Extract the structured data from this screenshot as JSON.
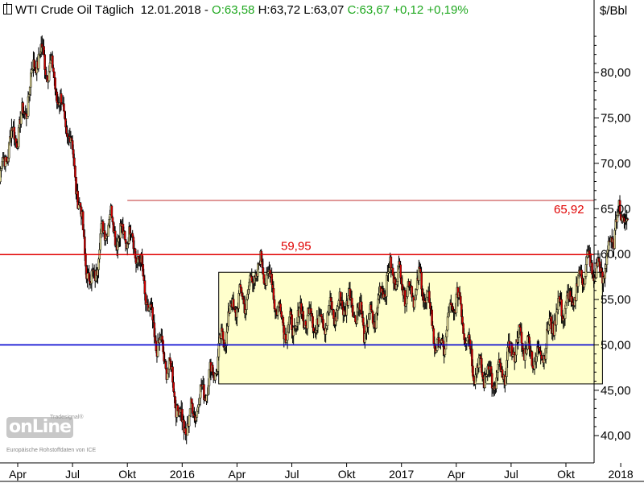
{
  "header": {
    "instrument": "WTI Crude Oil Täglich",
    "date": "12.01.2018",
    "open": "O:63,58",
    "high": "H:63,72",
    "low": "L:63,07",
    "close": "C:63,67",
    "change": "+0,12",
    "change_pct": "+0,19%"
  },
  "unit_label": "$/Bbl",
  "watermark": {
    "brand": "onLine",
    "top_text": "Tradesignal®",
    "sub_text": "Europäische Rohstoffdaten von ICE"
  },
  "colors": {
    "up": "#1fa81f",
    "support_red": "#e00000",
    "support_blue": "#0000d0",
    "resistance_thin": "#c03030",
    "range_fill": "#ffffcc",
    "candle_down": "#cc0000",
    "candle_up": "#d8d090"
  },
  "chart_data": {
    "type": "candlestick",
    "ylim": [
      37,
      88
    ],
    "y_ticks": [
      40,
      45,
      50,
      55,
      60,
      65,
      70,
      75,
      80
    ],
    "y_tick_labels": [
      "40,00",
      "45,00",
      "50,00",
      "55,00",
      "60,00",
      "65,00",
      "70,00",
      "75,00",
      "80,00"
    ],
    "x_ticks": [
      {
        "label": "Apr",
        "date": "2015-04"
      },
      {
        "label": "Jul",
        "date": "2015-07"
      },
      {
        "label": "Okt",
        "date": "2015-10"
      },
      {
        "label": "2016",
        "date": "2016-01"
      },
      {
        "label": "Apr",
        "date": "2016-04"
      },
      {
        "label": "Jul",
        "date": "2016-07"
      },
      {
        "label": "Okt",
        "date": "2016-10"
      },
      {
        "label": "2017",
        "date": "2017-01"
      },
      {
        "label": "Apr",
        "date": "2017-04"
      },
      {
        "label": "Jul",
        "date": "2017-07"
      },
      {
        "label": "Okt",
        "date": "2017-10"
      },
      {
        "label": "2018",
        "date": "2018-01"
      }
    ],
    "horizontal_lines": [
      {
        "value": 59.95,
        "label": "59,95",
        "color": "#e00000"
      },
      {
        "value": 50.0,
        "label": "",
        "color": "#0000d0"
      },
      {
        "value": 65.92,
        "label": "65,92",
        "color": "#c03030",
        "from": "2015-10"
      }
    ],
    "range_box": {
      "from": "2016-03",
      "to": "2017-12",
      "low": 45.7,
      "high": 58.0
    },
    "monthly_path": [
      {
        "date": "2015-03",
        "value": 68.0
      },
      {
        "date": "2015-04",
        "value": 74.0
      },
      {
        "date": "2015-05",
        "value": 81.0
      },
      {
        "date": "2015-06",
        "value": 80.5
      },
      {
        "date": "2015-07",
        "value": 70.0
      },
      {
        "date": "2015-08",
        "value": 57.0
      },
      {
        "date": "2015-09",
        "value": 63.5
      },
      {
        "date": "2015-10",
        "value": 62.5
      },
      {
        "date": "2015-11",
        "value": 56.0
      },
      {
        "date": "2015-12",
        "value": 48.0
      },
      {
        "date": "2016-01",
        "value": 42.0
      },
      {
        "date": "2016-02",
        "value": 43.0
      },
      {
        "date": "2016-03",
        "value": 50.0
      },
      {
        "date": "2016-04",
        "value": 54.0
      },
      {
        "date": "2016-05",
        "value": 58.5
      },
      {
        "date": "2016-06",
        "value": 56.0
      },
      {
        "date": "2016-07",
        "value": 51.0
      },
      {
        "date": "2016-08",
        "value": 54.0
      },
      {
        "date": "2016-09",
        "value": 52.0
      },
      {
        "date": "2016-10",
        "value": 56.0
      },
      {
        "date": "2016-11",
        "value": 51.0
      },
      {
        "date": "2016-12",
        "value": 57.0
      },
      {
        "date": "2017-01",
        "value": 57.0
      },
      {
        "date": "2017-02",
        "value": 56.5
      },
      {
        "date": "2017-03",
        "value": 50.0
      },
      {
        "date": "2017-04",
        "value": 54.5
      },
      {
        "date": "2017-05",
        "value": 48.5
      },
      {
        "date": "2017-06",
        "value": 45.0
      },
      {
        "date": "2017-07",
        "value": 50.0
      },
      {
        "date": "2017-08",
        "value": 49.0
      },
      {
        "date": "2017-09",
        "value": 50.5
      },
      {
        "date": "2017-10",
        "value": 55.0
      },
      {
        "date": "2017-11",
        "value": 57.5
      },
      {
        "date": "2017-12",
        "value": 59.0
      },
      {
        "date": "2018-01",
        "value": 63.8
      }
    ]
  }
}
